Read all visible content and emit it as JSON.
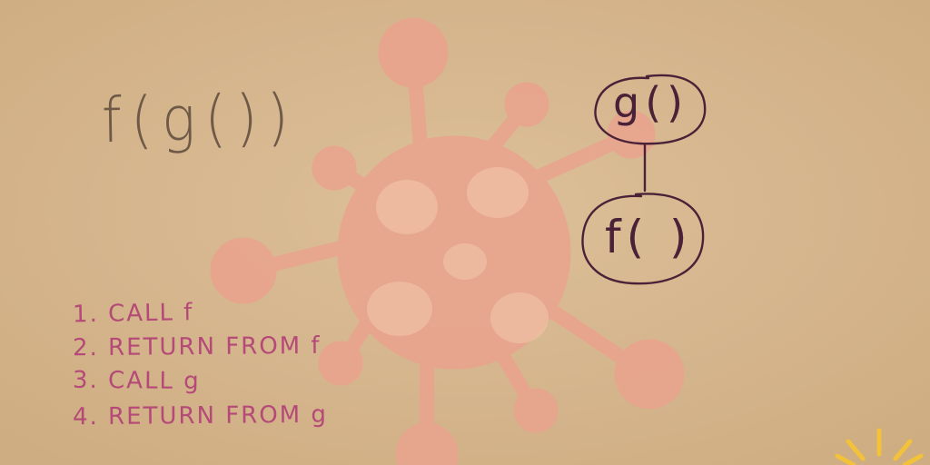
{
  "expression": "f(g())",
  "steps": [
    "1. CALL f",
    "2. RETURN FROM f",
    "3. CALL g",
    "4. RETURN FROM g"
  ],
  "call_graph": {
    "nodes": [
      "g()",
      "f( )"
    ]
  },
  "colors": {
    "paper": "#d8b88f",
    "virus": "#e8a58e",
    "expression_ink": "#6e5a47",
    "steps_ink": "#b54a78",
    "graph_ink": "#4a2238",
    "sun": "#f2c23a"
  },
  "icons": [
    "virus-icon",
    "sun-icon"
  ]
}
